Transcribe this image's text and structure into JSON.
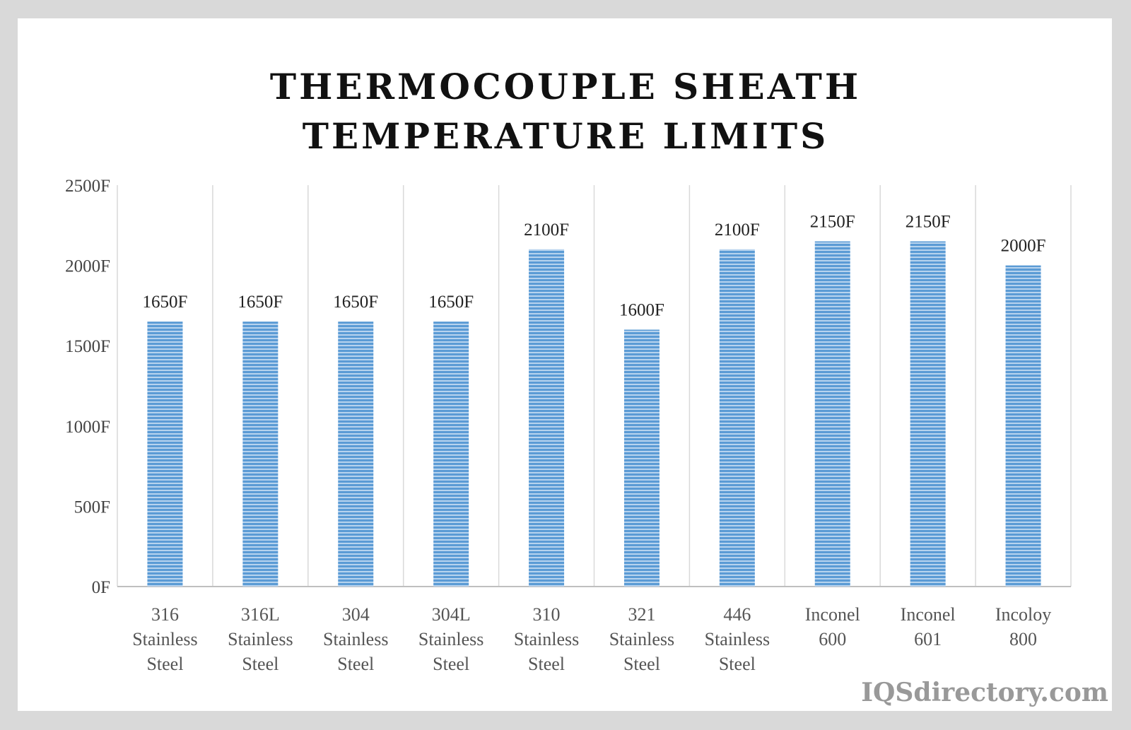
{
  "chart_data": {
    "type": "bar",
    "title": [
      "THERMOCOUPLE SHEATH",
      "TEMPERATURE LIMITS"
    ],
    "categories": [
      [
        "316",
        "Stainless",
        "Steel"
      ],
      [
        "316L",
        "Stainless",
        "Steel"
      ],
      [
        "304",
        "Stainless",
        "Steel"
      ],
      [
        "304L",
        "Stainless",
        "Steel"
      ],
      [
        "310",
        "Stainless",
        "Steel"
      ],
      [
        "321",
        "Stainless",
        "Steel"
      ],
      [
        "446",
        "Stainless",
        "Steel"
      ],
      [
        "Inconel",
        "600"
      ],
      [
        "Inconel",
        "601"
      ],
      [
        "Incoloy",
        "800"
      ]
    ],
    "values": [
      1650,
      1650,
      1650,
      1650,
      2100,
      1600,
      2100,
      2150,
      2150,
      2000
    ],
    "data_labels": [
      "1650F",
      "1650F",
      "1650F",
      "1650F",
      "2100F",
      "1600F",
      "2100F",
      "2150F",
      "2150F",
      "2000F"
    ],
    "yticks": [
      0,
      500,
      1000,
      1500,
      2000,
      2500
    ],
    "ytick_labels": [
      "0F",
      "500F",
      "1000F",
      "1500F",
      "2000F",
      "2500F"
    ],
    "ylim": [
      0,
      2500
    ],
    "xlabel": "",
    "ylabel": "",
    "grid": "vertical category separators",
    "bar_color": "#5b9bd5"
  },
  "watermark": "IQSdirectory.com"
}
